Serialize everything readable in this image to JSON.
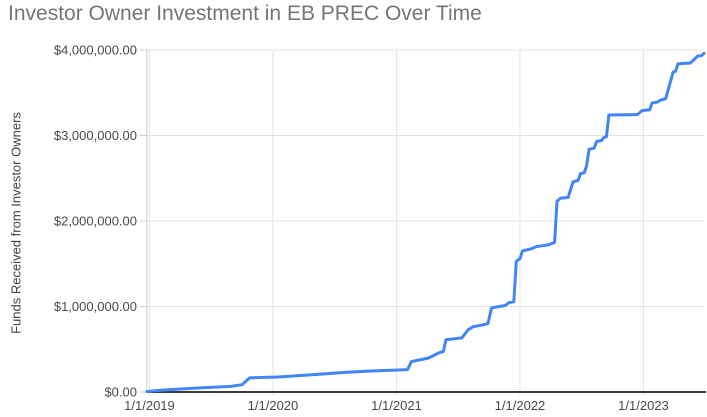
{
  "chart": {
    "title": "Investor Owner Investment in EB PREC Over Time",
    "y_axis_title": "Funds Received from Investor Owners"
  },
  "chart_data": {
    "type": "line",
    "title": "Investor Owner Investment in EB PREC Over Time",
    "xlabel": "",
    "ylabel": "Funds Received from Investor Owners",
    "legend": "none",
    "grid": true,
    "series_name": "Funds Received from Investor Owners",
    "series_color": "#4285f4",
    "x_tick_labels": [
      "1/1/2019",
      "1/1/2020",
      "1/1/2021",
      "1/1/2022",
      "1/1/2023"
    ],
    "x_tick_years": [
      2019,
      2020,
      2021,
      2022,
      2023
    ],
    "y_tick_labels": [
      "$0.00",
      "$1,000,000.00",
      "$2,000,000.00",
      "$3,000,000.00",
      "$4,000,000.00"
    ],
    "y_tick_values": [
      0,
      1000000,
      2000000,
      3000000,
      4000000
    ],
    "xlim": [
      2018.98,
      2023.49
    ],
    "ylim": [
      0,
      4000000
    ],
    "x_unit": "decimal year",
    "y_unit": "USD cumulative",
    "points": [
      [
        2018.98,
        5000
      ],
      [
        2019.1,
        22000
      ],
      [
        2019.39,
        47000
      ],
      [
        2019.66,
        65000
      ],
      [
        2019.75,
        85000
      ],
      [
        2019.78,
        125000
      ],
      [
        2019.81,
        165000
      ],
      [
        2019.9,
        170000
      ],
      [
        2020.04,
        176000
      ],
      [
        2020.3,
        200000
      ],
      [
        2020.6,
        230000
      ],
      [
        2020.79,
        246000
      ],
      [
        2020.99,
        256000
      ],
      [
        2021.09,
        262000
      ],
      [
        2021.12,
        355000
      ],
      [
        2021.26,
        398000
      ],
      [
        2021.34,
        455000
      ],
      [
        2021.38,
        475000
      ],
      [
        2021.4,
        610000
      ],
      [
        2021.53,
        633000
      ],
      [
        2021.58,
        727000
      ],
      [
        2021.62,
        762000
      ],
      [
        2021.7,
        786000
      ],
      [
        2021.74,
        800000
      ],
      [
        2021.77,
        985000
      ],
      [
        2021.88,
        1012000
      ],
      [
        2021.91,
        1045000
      ],
      [
        2021.95,
        1055000
      ],
      [
        2021.97,
        1530000
      ],
      [
        2022.0,
        1560000
      ],
      [
        2022.02,
        1650000
      ],
      [
        2022.1,
        1678000
      ],
      [
        2022.13,
        1700000
      ],
      [
        2022.23,
        1722000
      ],
      [
        2022.26,
        1738000
      ],
      [
        2022.28,
        1748000
      ],
      [
        2022.3,
        2230000
      ],
      [
        2022.33,
        2268000
      ],
      [
        2022.39,
        2275000
      ],
      [
        2022.43,
        2460000
      ],
      [
        2022.47,
        2472000
      ],
      [
        2022.49,
        2555000
      ],
      [
        2022.52,
        2562000
      ],
      [
        2022.54,
        2650000
      ],
      [
        2022.56,
        2840000
      ],
      [
        2022.6,
        2852000
      ],
      [
        2022.62,
        2930000
      ],
      [
        2022.66,
        2942000
      ],
      [
        2022.68,
        2978000
      ],
      [
        2022.7,
        2985000
      ],
      [
        2022.72,
        3240000
      ],
      [
        2022.95,
        3245000
      ],
      [
        2022.99,
        3292000
      ],
      [
        2023.05,
        3300000
      ],
      [
        2023.07,
        3380000
      ],
      [
        2023.11,
        3390000
      ],
      [
        2023.14,
        3415000
      ],
      [
        2023.18,
        3430000
      ],
      [
        2023.24,
        3740000
      ],
      [
        2023.26,
        3752000
      ],
      [
        2023.28,
        3840000
      ],
      [
        2023.38,
        3848000
      ],
      [
        2023.44,
        3930000
      ],
      [
        2023.47,
        3935000
      ],
      [
        2023.49,
        3960000
      ]
    ]
  },
  "colors": {
    "series_line": "#4285f4",
    "gridline": "#e3e3e3",
    "y_axis_line": "#cccccc",
    "x_axis_line": "#3c3c3c",
    "title_text": "#757575",
    "tick_label_text": "#494949",
    "axis_title_text": "#424242",
    "background": "#ffffff"
  }
}
